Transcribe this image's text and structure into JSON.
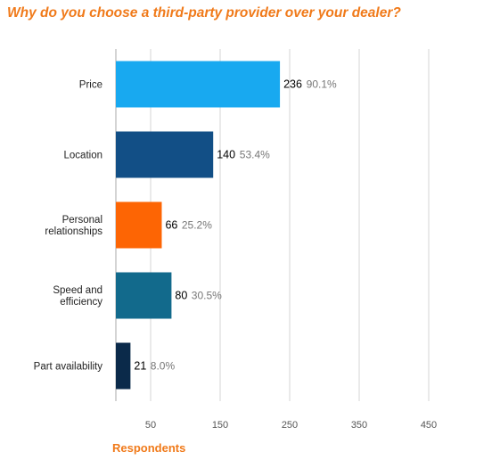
{
  "chart_data": {
    "type": "bar",
    "orientation": "horizontal",
    "title": "Why do you choose a third-party provider over your dealer?",
    "xlabel": "Respondents",
    "ylabel": "",
    "categories": [
      "Price",
      "Location",
      "Personal relationships",
      "Speed and efficiency",
      "Part availability"
    ],
    "category_lines": [
      [
        "Price"
      ],
      [
        "Location"
      ],
      [
        "Personal",
        "relationships"
      ],
      [
        "Speed and",
        "efficiency"
      ],
      [
        "Part availability"
      ]
    ],
    "values": [
      236,
      140,
      66,
      80,
      21
    ],
    "percent_labels": [
      "90.1%",
      "53.4%",
      "25.2%",
      "30.5%",
      "8.0%"
    ],
    "colors": [
      "#18a9f0",
      "#124f86",
      "#fd6504",
      "#126a8c",
      "#0b2a4a"
    ],
    "xlim": [
      0,
      500
    ],
    "xticks": [
      50,
      150,
      250,
      350,
      450
    ],
    "grid": true
  }
}
